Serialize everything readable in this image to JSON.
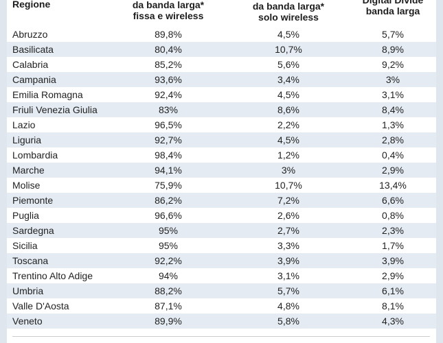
{
  "table": {
    "header": [
      [
        "Regione"
      ],
      [
        "da banda larga*",
        "fissa e wireless"
      ],
      [
        "da banda larga*",
        "solo wireless"
      ],
      [
        "Digital Divide",
        "banda larga"
      ]
    ],
    "rows": [
      [
        "Abruzzo",
        "89,8%",
        "4,5%",
        "5,7%"
      ],
      [
        "Basilicata",
        "80,4%",
        "10,7%",
        "8,9%"
      ],
      [
        "Calabria",
        "85,2%",
        "5,6%",
        "9,2%"
      ],
      [
        "Campania",
        "93,6%",
        "3,4%",
        "3%"
      ],
      [
        "Emilia Romagna",
        "92,4%",
        "4,5%",
        "3,1%"
      ],
      [
        "Friuli Venezia Giulia",
        "83%",
        "8,6%",
        "8,4%"
      ],
      [
        "Lazio",
        "96,5%",
        "2,2%",
        "1,3%"
      ],
      [
        "Liguria",
        "92,7%",
        "4,5%",
        "2,8%"
      ],
      [
        "Lombardia",
        "98,4%",
        "1,2%",
        "0,4%"
      ],
      [
        "Marche",
        "94,1%",
        "3%",
        "2,9%"
      ],
      [
        "Molise",
        "75,9%",
        "10,7%",
        "13,4%"
      ],
      [
        "Piemonte",
        "86,2%",
        "7,2%",
        "6,6%"
      ],
      [
        "Puglia",
        "96,6%",
        "2,6%",
        "0,8%"
      ],
      [
        "Sardegna",
        "95%",
        "2,7%",
        "2,3%"
      ],
      [
        "Sicilia",
        "95%",
        "3,3%",
        "1,7%"
      ],
      [
        "Toscana",
        "92,2%",
        "3,9%",
        "3,9%"
      ],
      [
        "Trentino Alto Adige",
        "94%",
        "3,1%",
        "2,9%"
      ],
      [
        "Umbria",
        "88,2%",
        "5,7%",
        "6,1%"
      ],
      [
        "Valle D'Aosta",
        "87,1%",
        "4,8%",
        "8,1%"
      ],
      [
        "Veneto",
        "89,9%",
        "5,8%",
        "4,3%"
      ]
    ]
  }
}
